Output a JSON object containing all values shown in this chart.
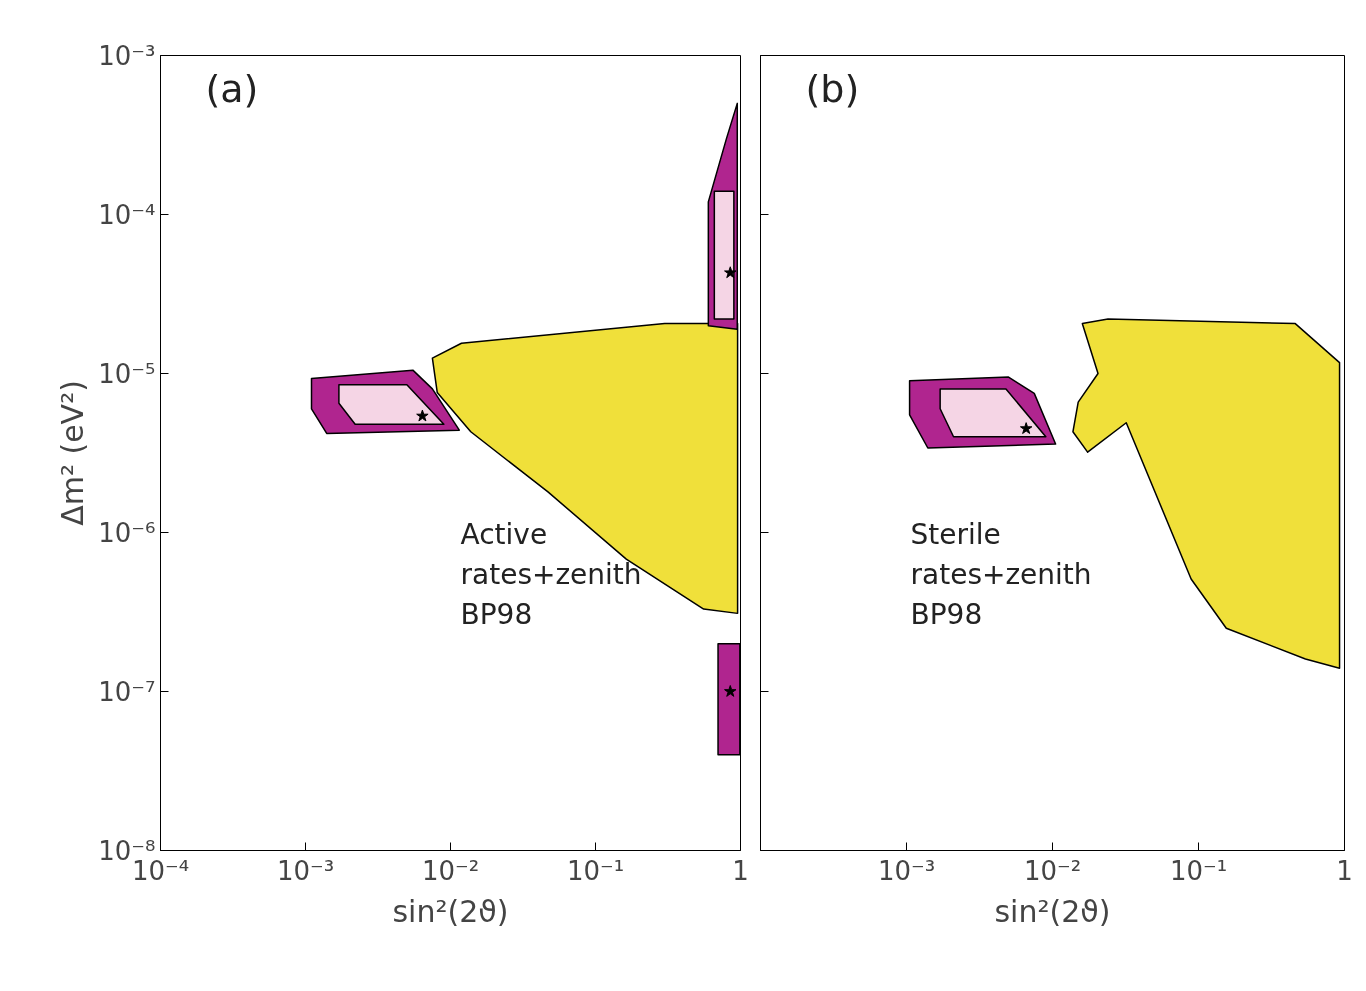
{
  "chart_data": [
    {
      "type": "area",
      "log": "xy",
      "grid": false,
      "xlabel": "sin²(2ϑ)",
      "ylabel": "Δm² (eV²)",
      "xlim": [
        0.0001,
        1
      ],
      "ylim": [
        1e-08,
        0.001
      ],
      "xticks": [
        {
          "value": 0.0001,
          "label": "10⁻⁴"
        },
        {
          "value": 0.001,
          "label": "10⁻³"
        },
        {
          "value": 0.01,
          "label": "10⁻²"
        },
        {
          "value": 0.1,
          "label": "10⁻¹"
        },
        1
      ],
      "yticks": [
        {
          "value": 1e-08,
          "label": "10⁻⁸"
        },
        {
          "value": 1e-07,
          "label": "10⁻⁷"
        },
        {
          "value": 1e-06,
          "label": "10⁻⁶"
        },
        {
          "value": 1e-05,
          "label": "10⁻⁵"
        },
        {
          "value": 0.0001,
          "label": "10⁻⁴"
        },
        {
          "value": 0.001,
          "label": "10⁻³"
        }
      ],
      "annotations": [
        "(a)",
        "Active\nrates+zenith\nBP98"
      ],
      "series": [
        {
          "color": "#f0e03a",
          "x": [
            0.0075,
            0.0119,
            0.3,
            0.955,
            0.955,
            0.557,
            0.163,
            0.047,
            0.0138,
            0.0081
          ],
          "values": [
            1.25e-05,
            1.55e-05,
            2.06e-05,
            2.06e-05,
            3.1e-07,
            3.3e-07,
            6.8e-07,
            1.8e-06,
            4.3e-06,
            7.6e-06
          ]
        },
        {
          "color": "#b0258f",
          "x": [
            0.0011,
            0.0055,
            0.0075,
            0.0115,
            0.0014,
            0.0011
          ],
          "values": [
            9.3e-06,
            1.05e-05,
            8e-06,
            4.4e-06,
            4.2e-06,
            6e-06
          ]
        },
        {
          "color": "#f5d5e5",
          "x": [
            0.0017,
            0.005,
            0.009,
            0.0022,
            0.0017
          ],
          "values": [
            8.5e-06,
            8.5e-06,
            4.8e-06,
            4.8e-06,
            6.5e-06
          ]
        },
        {
          "color": "#b0258f",
          "x": [
            0.6,
            0.6,
            0.8,
            0.95,
            0.95
          ],
          "values": [
            2e-05,
            0.00012,
            0.0003,
            0.0005,
            1.9e-05
          ]
        },
        {
          "color": "#f5d5e5",
          "x": [
            0.66,
            0.66,
            0.9,
            0.9
          ],
          "values": [
            2.2e-05,
            0.00014,
            0.00014,
            2.2e-05
          ]
        },
        {
          "color": "#b0258f",
          "x": [
            0.7,
            0.7,
            0.99,
            0.99
          ],
          "values": [
            4e-08,
            2e-07,
            2e-07,
            4e-08
          ]
        },
        {
          "type": "scatter",
          "marker": "star",
          "color": "#000000",
          "x": [
            0.0064,
            0.85,
            0.85
          ],
          "values": [
            5.4e-06,
            4.3e-05,
            1e-07
          ]
        }
      ]
    },
    {
      "type": "area",
      "log": "xy",
      "grid": false,
      "tick_labels": "x",
      "xlabel": "sin²(2ϑ)",
      "xlim": [
        0.0001,
        1
      ],
      "ylim": [
        1e-08,
        0.001
      ],
      "xticks": [
        {
          "value": 0.001,
          "label": "10⁻³"
        },
        {
          "value": 0.01,
          "label": "10⁻²"
        },
        {
          "value": 0.1,
          "label": "10⁻¹"
        },
        1
      ],
      "yticks": [
        {
          "value": 1e-08,
          "label": null
        },
        {
          "value": 1e-07,
          "label": null
        },
        {
          "value": 1e-06,
          "label": null
        },
        {
          "value": 1e-05,
          "label": null
        },
        {
          "value": 0.0001,
          "label": null
        },
        {
          "value": 0.001,
          "label": null
        }
      ],
      "annotations": [
        "(b)",
        "Sterile\nrates+zenith\nBP98"
      ],
      "series": [
        {
          "color": "#f0e03a",
          "x": [
            0.016,
            0.024,
            0.46,
            0.925,
            0.925,
            0.54,
            0.155,
            0.089,
            0.032,
            0.0174,
            0.0138,
            0.015,
            0.0205
          ],
          "values": [
            2.06e-05,
            2.2e-05,
            2.06e-05,
            1.17e-05,
            1.4e-07,
            1.6e-07,
            2.5e-07,
            5.1e-07,
            4.9e-06,
            3.2e-06,
            4.3e-06,
            6.6e-06,
            1e-05
          ]
        },
        {
          "color": "#b0258f",
          "x": [
            0.00105,
            0.005,
            0.0075,
            0.0105,
            0.0014,
            0.00105
          ],
          "values": [
            9e-06,
            9.5e-06,
            7.5e-06,
            3.6e-06,
            3.4e-06,
            5.5e-06
          ]
        },
        {
          "color": "#f5d5e5",
          "x": [
            0.0017,
            0.0048,
            0.009,
            0.0021,
            0.0017
          ],
          "values": [
            8e-06,
            8e-06,
            4e-06,
            4e-06,
            6e-06
          ]
        },
        {
          "type": "scatter",
          "marker": "star",
          "color": "#000000",
          "x": [
            0.0066
          ],
          "values": [
            4.5e-06
          ]
        }
      ]
    }
  ]
}
